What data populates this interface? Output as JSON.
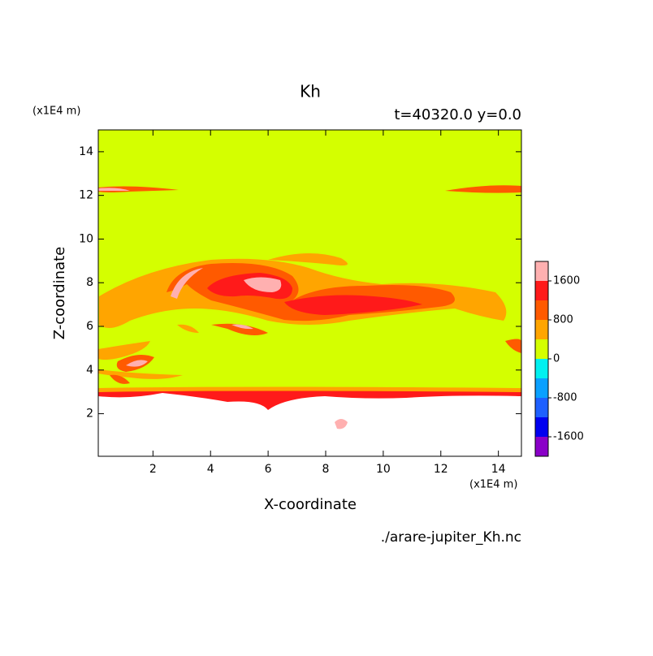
{
  "chart_data": {
    "type": "contour",
    "title": "Kh",
    "subtitle": "t=40320.0 y=0.0",
    "x_label": "X-coordinate",
    "y_label": "Z-coordinate",
    "x_unit": "(x1E4 m)",
    "y_unit": "(x1E4 m)",
    "source": "./arare-jupiter_Kh.nc",
    "xlim": [
      0.1,
      14.8
    ],
    "ylim": [
      0.05,
      15
    ],
    "xticks": [
      2,
      4,
      6,
      8,
      10,
      12,
      14
    ],
    "yticks": [
      2,
      4,
      6,
      8,
      10,
      12,
      14
    ],
    "colorbar": {
      "levels": [
        -2000,
        -1600,
        -1200,
        -800,
        -400,
        0,
        400,
        800,
        1200,
        1600,
        2000
      ],
      "colors": [
        "#8a00c8",
        "#0000f0",
        "#1e60ff",
        "#0aa0ff",
        "#00f0f0",
        "#d4ff00",
        "#ffa500",
        "#ff5a00",
        "#ff1a1a",
        "#ffb0b0"
      ],
      "ticks": [
        -1600,
        -800,
        0,
        800,
        1600
      ]
    }
  }
}
